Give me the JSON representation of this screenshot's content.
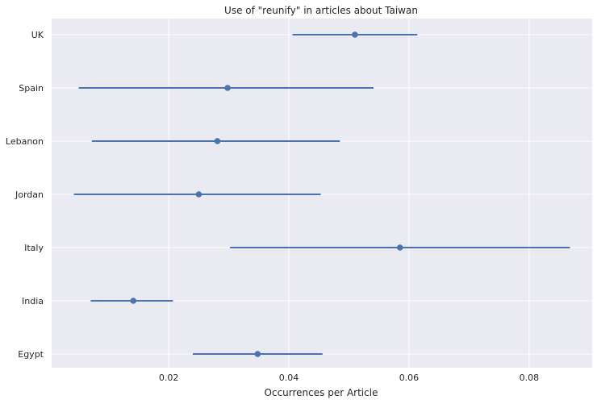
{
  "chart_data": {
    "type": "scatter",
    "title": "Use of \"reunify\" in articles about Taiwan",
    "xlabel": "Occurrences per Article",
    "ylabel": "",
    "xlim": [
      0.0005,
      0.0905
    ],
    "x_ticks": [
      0.02,
      0.04,
      0.06,
      0.08
    ],
    "x_tick_labels": [
      "0.02",
      "0.04",
      "0.06",
      "0.08"
    ],
    "grid": true,
    "categories": [
      "UK",
      "Spain",
      "Lebanon",
      "Jordan",
      "Italy",
      "India",
      "Egypt"
    ],
    "series": [
      {
        "estimate": [
          0.051,
          0.0298,
          0.0281,
          0.025,
          0.0585,
          0.0141,
          0.0348
        ],
        "ci_low": [
          0.0406,
          0.005,
          0.0072,
          0.0042,
          0.0302,
          0.007,
          0.024
        ],
        "ci_high": [
          0.0614,
          0.0541,
          0.0485,
          0.0453,
          0.0868,
          0.0207,
          0.0456
        ]
      }
    ],
    "colors": {
      "marker": "#4c72b0",
      "background": "#eaeaf2",
      "grid": "#ffffff"
    }
  }
}
